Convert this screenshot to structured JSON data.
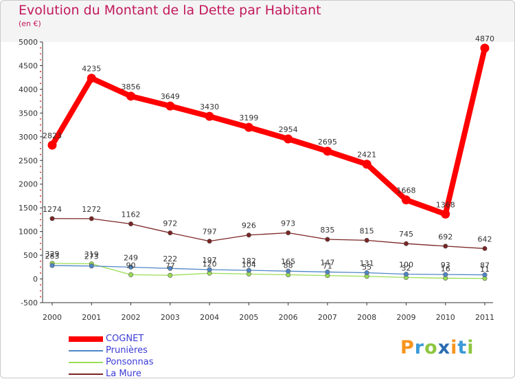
{
  "title": "Evolution du Montant de la Dette par Habitant",
  "unit": "(en €)",
  "logo": "Proxiti",
  "chart_data": {
    "type": "line",
    "title": "Evolution du Montant de la Dette par Habitant",
    "ylabel": "(en €)",
    "x": [
      "2000",
      "2001",
      "2002",
      "2003",
      "2004",
      "2005",
      "2006",
      "2007",
      "2008",
      "2009",
      "2010",
      "2011"
    ],
    "ylim": [
      -500,
      5000
    ],
    "yticks": [
      -500,
      0,
      500,
      1000,
      1500,
      2000,
      2500,
      3000,
      3500,
      4000,
      4500,
      5000
    ],
    "grid": false,
    "legend": "bottom-left",
    "series": [
      {
        "name": "COGNET",
        "color": "#ff0000",
        "values": [
          2823,
          4235,
          3856,
          3649,
          3430,
          3199,
          2954,
          2695,
          2421,
          1668,
          1368,
          4870
        ]
      },
      {
        "name": "Prunières",
        "color": "#4f86c6",
        "values": [
          283,
          273,
          249,
          222,
          197,
          182,
          165,
          147,
          131,
          100,
          93,
          87
        ]
      },
      {
        "name": "Ponsonnas",
        "color": "#99dd55",
        "values": [
          329,
          319,
          90,
          77,
          120,
          104,
          88,
          71,
          55,
          32,
          16,
          11
        ]
      },
      {
        "name": "La Mure",
        "color": "#7b2424",
        "values": [
          1274,
          1272,
          1162,
          972,
          797,
          926,
          973,
          835,
          815,
          745,
          692,
          642
        ]
      }
    ]
  }
}
